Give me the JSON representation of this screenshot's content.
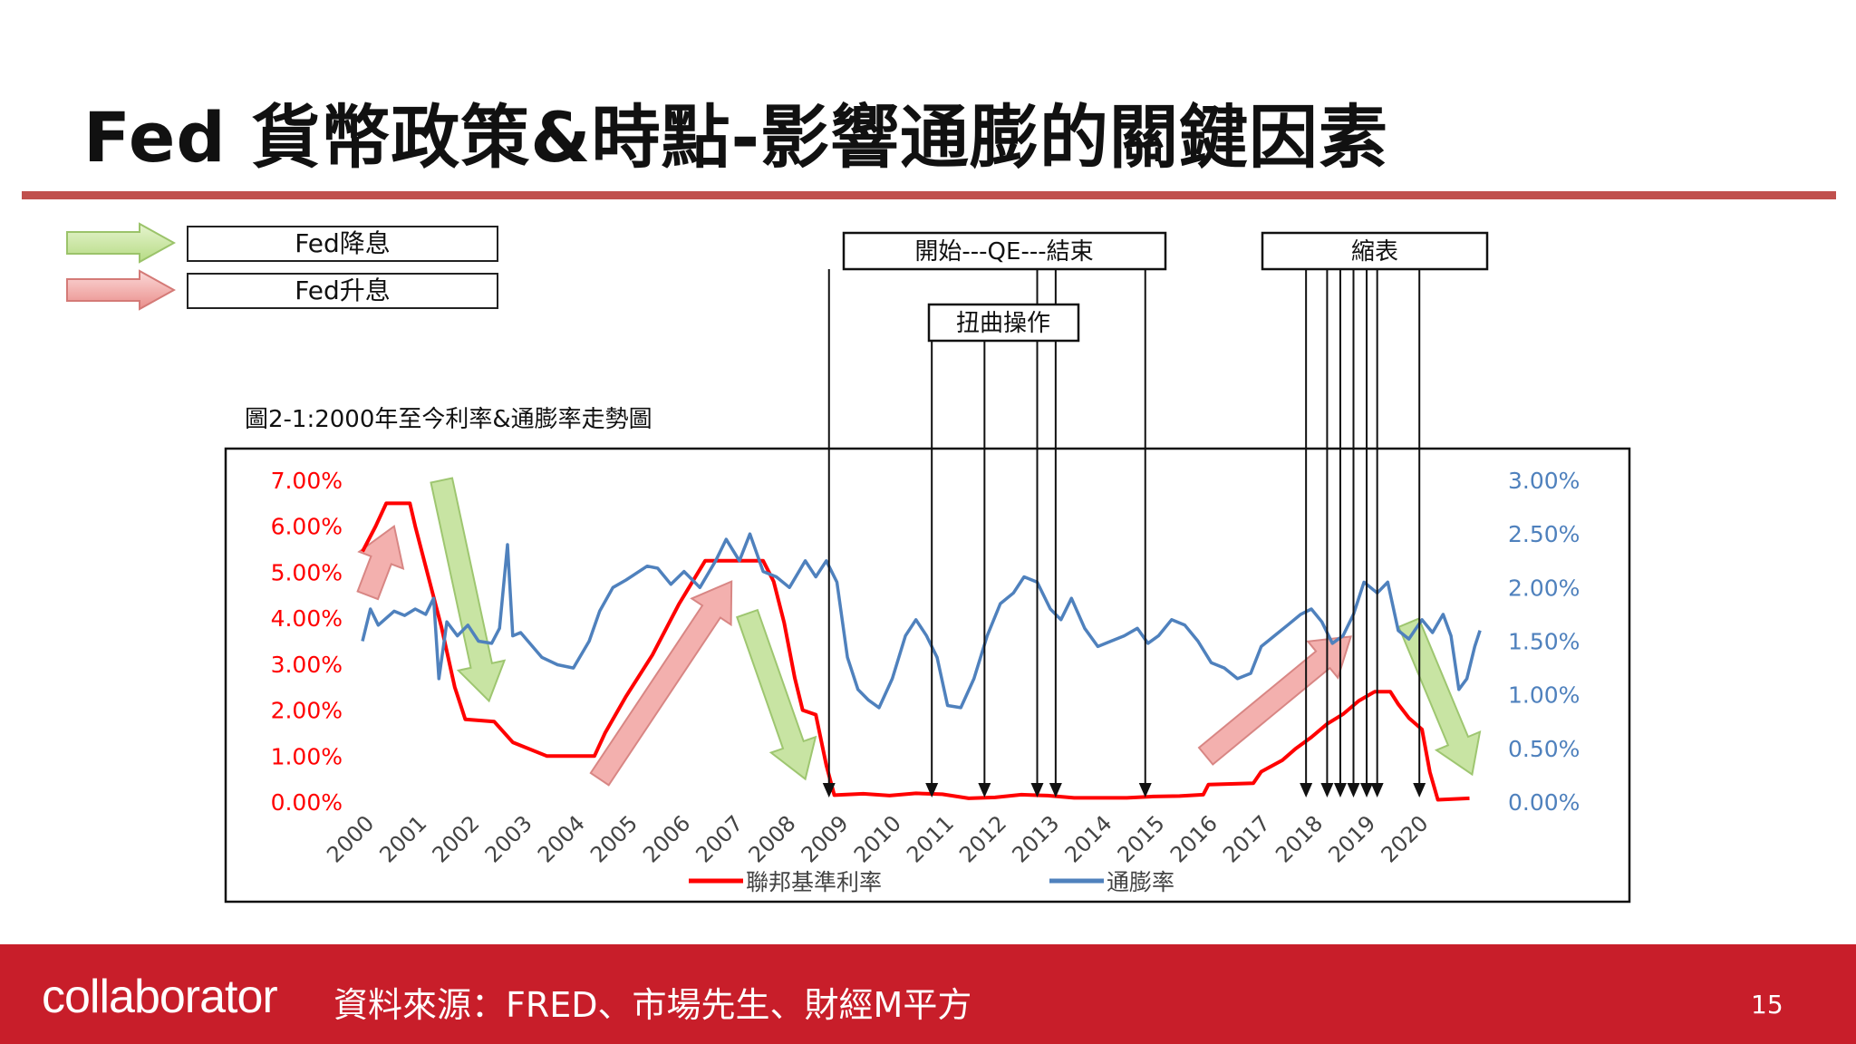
{
  "slide": {
    "title": "Fed 貨幣政策&時點-影響通膨的關鍵因素",
    "legend_cut_label": "Fed降息",
    "legend_hike_label": "Fed升息",
    "chart_caption": "圖2-1:2000年至今利率&通膨率走勢圖",
    "qe_label": "開始---QE---結束",
    "twist_label": "扭曲操作",
    "taper_label": "縮表",
    "footer_logo": "collaborator",
    "footer_source": "資料來源：FRED、市場先生、財經M平方",
    "page_number": "15"
  },
  "colors": {
    "accent_rule": "#c0504d",
    "footer_bg": "#c81e2a",
    "fed_rate": "#ff0000",
    "inflation": "#4f81bd",
    "cut_arrow": "#c3e29a",
    "hike_arrow": "#f2a8a6"
  },
  "chart_data": {
    "type": "line",
    "x_tick_labels": [
      "2000",
      "2001",
      "2002",
      "2003",
      "2004",
      "2005",
      "2006",
      "2007",
      "2008",
      "2009",
      "2010",
      "2011",
      "2012",
      "2013",
      "2014",
      "2015",
      "2016",
      "2017",
      "2018",
      "2019",
      "2020"
    ],
    "y_left_ticks": [
      "0.00%",
      "1.00%",
      "2.00%",
      "3.00%",
      "4.00%",
      "5.00%",
      "6.00%",
      "7.00%"
    ],
    "y_right_ticks": [
      "0.00%",
      "0.50%",
      "1.00%",
      "1.50%",
      "2.00%",
      "2.50%",
      "3.00%"
    ],
    "y_left_range": [
      0,
      7
    ],
    "y_right_range": [
      0,
      3
    ],
    "x_range": [
      2000,
      2021.25
    ],
    "series": [
      {
        "name": "聯邦基準利率",
        "axis": "left",
        "points": [
          [
            2000.0,
            5.45
          ],
          [
            2000.25,
            6.0
          ],
          [
            2000.45,
            6.5
          ],
          [
            2000.9,
            6.5
          ],
          [
            2001.0,
            6.0
          ],
          [
            2001.25,
            4.9
          ],
          [
            2001.5,
            3.8
          ],
          [
            2001.75,
            2.5
          ],
          [
            2001.95,
            1.8
          ],
          [
            2002.5,
            1.75
          ],
          [
            2002.85,
            1.3
          ],
          [
            2003.5,
            1.0
          ],
          [
            2004.0,
            1.0
          ],
          [
            2004.4,
            1.0
          ],
          [
            2004.6,
            1.5
          ],
          [
            2005.0,
            2.3
          ],
          [
            2005.5,
            3.2
          ],
          [
            2006.0,
            4.3
          ],
          [
            2006.5,
            5.25
          ],
          [
            2007.6,
            5.25
          ],
          [
            2007.8,
            4.8
          ],
          [
            2008.0,
            3.9
          ],
          [
            2008.2,
            2.7
          ],
          [
            2008.35,
            2.0
          ],
          [
            2008.6,
            1.9
          ],
          [
            2008.8,
            0.8
          ],
          [
            2008.95,
            0.15
          ],
          [
            2009.5,
            0.18
          ],
          [
            2010.0,
            0.14
          ],
          [
            2010.5,
            0.19
          ],
          [
            2011.0,
            0.17
          ],
          [
            2011.5,
            0.08
          ],
          [
            2012.0,
            0.1
          ],
          [
            2012.5,
            0.16
          ],
          [
            2013.0,
            0.14
          ],
          [
            2013.5,
            0.09
          ],
          [
            2014.0,
            0.09
          ],
          [
            2014.5,
            0.09
          ],
          [
            2015.0,
            0.12
          ],
          [
            2015.5,
            0.13
          ],
          [
            2015.95,
            0.16
          ],
          [
            2016.05,
            0.38
          ],
          [
            2016.9,
            0.41
          ],
          [
            2017.05,
            0.66
          ],
          [
            2017.45,
            0.91
          ],
          [
            2017.7,
            1.16
          ],
          [
            2018.0,
            1.41
          ],
          [
            2018.3,
            1.7
          ],
          [
            2018.6,
            1.91
          ],
          [
            2018.9,
            2.2
          ],
          [
            2019.2,
            2.4
          ],
          [
            2019.5,
            2.4
          ],
          [
            2019.65,
            2.13
          ],
          [
            2019.85,
            1.83
          ],
          [
            2020.1,
            1.58
          ],
          [
            2020.25,
            0.65
          ],
          [
            2020.4,
            0.05
          ],
          [
            2021.0,
            0.08
          ]
        ]
      },
      {
        "name": "通膨率",
        "axis": "right",
        "points": [
          [
            2000.0,
            1.5
          ],
          [
            2000.15,
            1.8
          ],
          [
            2000.3,
            1.65
          ],
          [
            2000.6,
            1.78
          ],
          [
            2000.8,
            1.74
          ],
          [
            2001.0,
            1.8
          ],
          [
            2001.2,
            1.75
          ],
          [
            2001.35,
            1.9
          ],
          [
            2001.45,
            1.15
          ],
          [
            2001.6,
            1.68
          ],
          [
            2001.8,
            1.55
          ],
          [
            2002.0,
            1.65
          ],
          [
            2002.2,
            1.5
          ],
          [
            2002.45,
            1.48
          ],
          [
            2002.6,
            1.62
          ],
          [
            2002.75,
            2.4
          ],
          [
            2002.85,
            1.55
          ],
          [
            2003.0,
            1.58
          ],
          [
            2003.4,
            1.35
          ],
          [
            2003.7,
            1.28
          ],
          [
            2004.0,
            1.25
          ],
          [
            2004.3,
            1.5
          ],
          [
            2004.5,
            1.78
          ],
          [
            2004.75,
            2.0
          ],
          [
            2005.0,
            2.07
          ],
          [
            2005.4,
            2.2
          ],
          [
            2005.6,
            2.18
          ],
          [
            2005.85,
            2.03
          ],
          [
            2006.1,
            2.15
          ],
          [
            2006.4,
            2.0
          ],
          [
            2006.7,
            2.25
          ],
          [
            2006.9,
            2.45
          ],
          [
            2007.15,
            2.25
          ],
          [
            2007.35,
            2.5
          ],
          [
            2007.6,
            2.15
          ],
          [
            2007.85,
            2.1
          ],
          [
            2008.1,
            2.0
          ],
          [
            2008.4,
            2.25
          ],
          [
            2008.6,
            2.1
          ],
          [
            2008.8,
            2.25
          ],
          [
            2009.0,
            2.05
          ],
          [
            2009.2,
            1.35
          ],
          [
            2009.4,
            1.05
          ],
          [
            2009.6,
            0.95
          ],
          [
            2009.8,
            0.88
          ],
          [
            2010.05,
            1.15
          ],
          [
            2010.3,
            1.55
          ],
          [
            2010.5,
            1.7
          ],
          [
            2010.7,
            1.55
          ],
          [
            2010.9,
            1.35
          ],
          [
            2011.1,
            0.9
          ],
          [
            2011.35,
            0.88
          ],
          [
            2011.6,
            1.15
          ],
          [
            2011.85,
            1.55
          ],
          [
            2012.1,
            1.85
          ],
          [
            2012.35,
            1.95
          ],
          [
            2012.55,
            2.1
          ],
          [
            2012.8,
            2.05
          ],
          [
            2013.05,
            1.8
          ],
          [
            2013.25,
            1.7
          ],
          [
            2013.45,
            1.9
          ],
          [
            2013.7,
            1.62
          ],
          [
            2013.95,
            1.45
          ],
          [
            2014.2,
            1.5
          ],
          [
            2014.45,
            1.55
          ],
          [
            2014.7,
            1.62
          ],
          [
            2014.9,
            1.48
          ],
          [
            2015.1,
            1.55
          ],
          [
            2015.35,
            1.7
          ],
          [
            2015.6,
            1.65
          ],
          [
            2015.85,
            1.5
          ],
          [
            2016.1,
            1.3
          ],
          [
            2016.35,
            1.25
          ],
          [
            2016.6,
            1.15
          ],
          [
            2016.85,
            1.2
          ],
          [
            2017.05,
            1.45
          ],
          [
            2017.3,
            1.55
          ],
          [
            2017.55,
            1.65
          ],
          [
            2017.8,
            1.75
          ],
          [
            2018.0,
            1.8
          ],
          [
            2018.2,
            1.68
          ],
          [
            2018.4,
            1.48
          ],
          [
            2018.6,
            1.55
          ],
          [
            2018.8,
            1.75
          ],
          [
            2019.0,
            2.05
          ],
          [
            2019.25,
            1.95
          ],
          [
            2019.45,
            2.05
          ],
          [
            2019.65,
            1.6
          ],
          [
            2019.85,
            1.52
          ],
          [
            2020.1,
            1.7
          ],
          [
            2020.3,
            1.58
          ],
          [
            2020.5,
            1.75
          ],
          [
            2020.65,
            1.55
          ],
          [
            2020.8,
            1.05
          ],
          [
            2020.95,
            1.15
          ],
          [
            2021.1,
            1.45
          ],
          [
            2021.2,
            1.6
          ]
        ]
      }
    ],
    "event_markers": [
      {
        "label": "QE start",
        "x": 2008.85
      },
      {
        "label": "twist",
        "x": 2010.8
      },
      {
        "label": "twist",
        "x": 2011.8
      },
      {
        "label": "QE end",
        "x": 2012.8
      },
      {
        "label": "QE end",
        "x": 2013.15
      },
      {
        "label": "QE end",
        "x": 2014.85
      },
      {
        "label": "taper",
        "x": 2017.9
      },
      {
        "label": "taper",
        "x": 2018.3
      },
      {
        "label": "taper",
        "x": 2018.55
      },
      {
        "label": "taper",
        "x": 2018.8
      },
      {
        "label": "taper",
        "x": 2019.05
      },
      {
        "label": "taper",
        "x": 2019.25
      },
      {
        "label": "taper",
        "x": 2020.05
      }
    ],
    "policy_arrows": [
      {
        "kind": "hike",
        "from": [
          2000.1,
          4.5
        ],
        "to": [
          2000.6,
          6.0
        ],
        "axis": "left"
      },
      {
        "kind": "cut",
        "from": [
          2001.5,
          7.0
        ],
        "to": [
          2002.4,
          2.2
        ],
        "axis": "left"
      },
      {
        "kind": "hike",
        "from": [
          2004.5,
          0.5
        ],
        "to": [
          2007.0,
          4.8
        ],
        "axis": "left"
      },
      {
        "kind": "cut",
        "from": [
          2007.3,
          4.1
        ],
        "to": [
          2008.4,
          0.5
        ],
        "axis": "left"
      },
      {
        "kind": "hike",
        "from": [
          2016.0,
          1.0
        ],
        "to": [
          2018.75,
          3.6
        ],
        "axis": "left"
      },
      {
        "kind": "cut",
        "from": [
          2019.85,
          3.9
        ],
        "to": [
          2021.05,
          0.6
        ],
        "axis": "left"
      }
    ],
    "grid": false,
    "legend_position": "bottom"
  }
}
